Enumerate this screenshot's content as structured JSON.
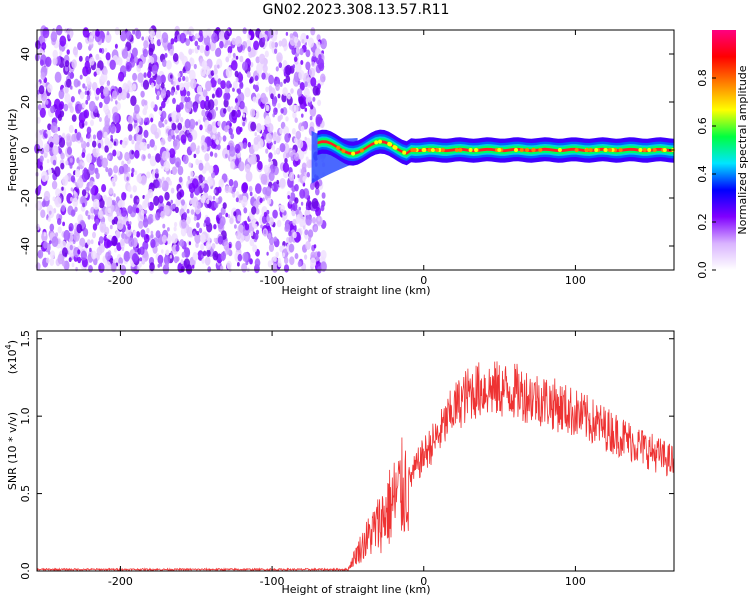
{
  "title": "GN02.2023.308.13.57.R11",
  "chart_data": [
    {
      "type": "heatmap",
      "title": "GN02.2023.308.13.57.R11",
      "xlabel": "Height of straight line (km)",
      "ylabel": "Frequency (Hz)",
      "xlim": [
        -255,
        165
      ],
      "ylim": [
        -50,
        50
      ],
      "x_ticks": [
        "-200",
        "-100",
        "0",
        "100"
      ],
      "y_ticks": [
        "40",
        "20",
        "0",
        "-20",
        "-40"
      ],
      "noise_region_x": [
        -255,
        -70
      ],
      "signal_onset_km": -70,
      "signal_band_hz": [
        -2,
        2
      ],
      "colorbar": {
        "label": "Normalized spectral amplitude",
        "range": [
          0,
          1
        ],
        "ticks": [
          "0.0",
          "0.2",
          "0.4",
          "0.6",
          "0.8"
        ],
        "colors": [
          "#ffffff",
          "#d9b3ff",
          "#8000ff",
          "#0000ff",
          "#00e5ff",
          "#00ff40",
          "#ffff00",
          "#ff8000",
          "#ff0000",
          "#ff0080"
        ]
      }
    },
    {
      "type": "line",
      "xlabel": "Height of straight line (km)",
      "ylabel": "SNR (10 * v/v)",
      "yexponent": "(x10",
      "yexponent_power": "4",
      "yexponent_close": ")",
      "xlim": [
        -255,
        165
      ],
      "ylim": [
        0,
        1.55
      ],
      "x_ticks": [
        "-200",
        "-100",
        "0",
        "100"
      ],
      "y_ticks": [
        "0.0",
        "0.5",
        "1.0",
        "1.5"
      ],
      "color": "#ee3333",
      "envelope": {
        "x": [
          -255,
          -50,
          -45,
          -38,
          -30,
          -20,
          -10,
          0,
          10,
          20,
          30,
          40,
          60,
          80,
          100,
          120,
          140,
          165
        ],
        "y": [
          0.01,
          0.01,
          0.1,
          0.2,
          0.3,
          0.45,
          0.58,
          0.75,
          0.88,
          1.05,
          1.15,
          1.18,
          1.16,
          1.1,
          1.02,
          0.92,
          0.82,
          0.7
        ]
      }
    }
  ]
}
